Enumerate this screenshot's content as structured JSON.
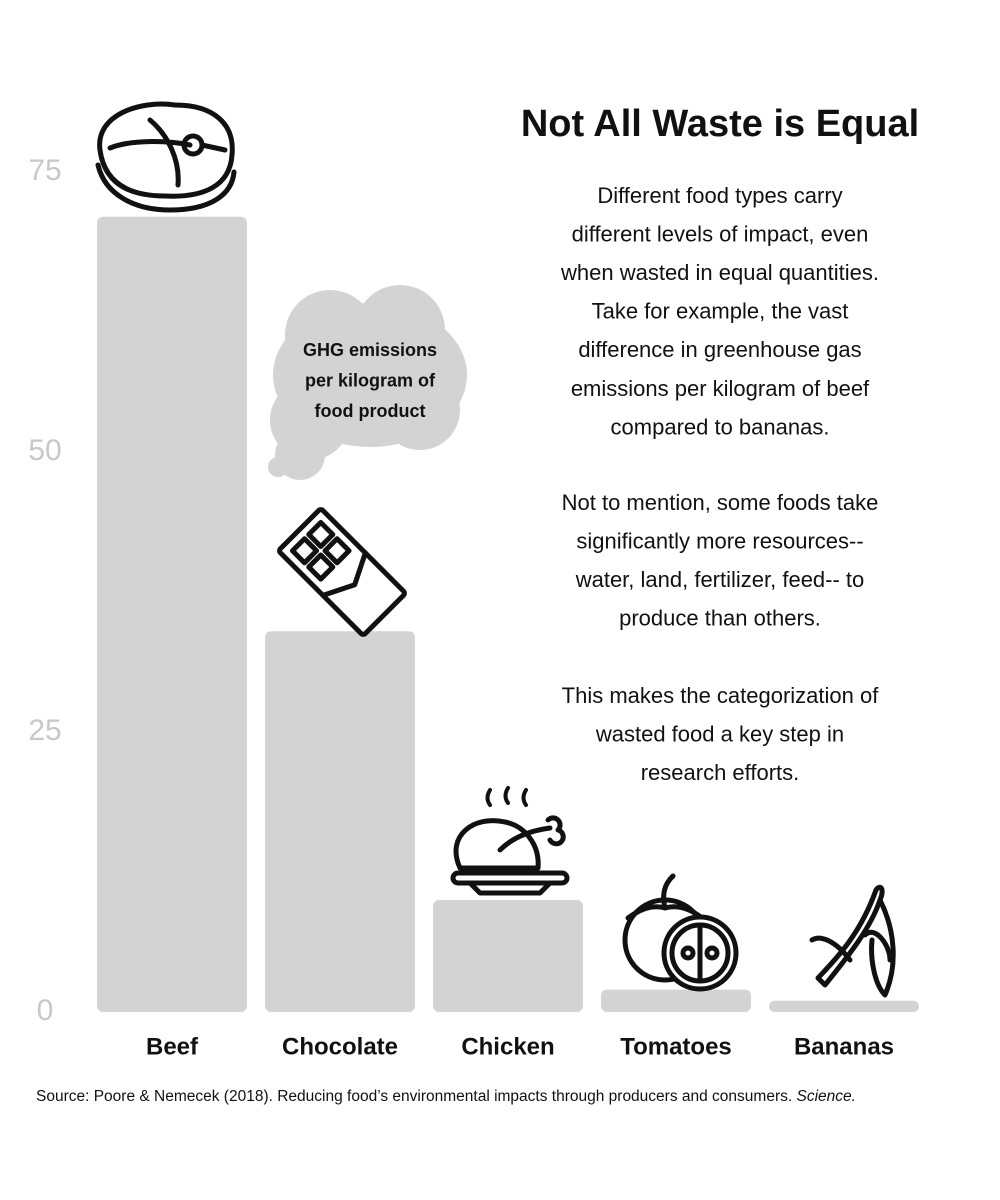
{
  "chart_data": {
    "type": "bar",
    "title": "Not All Waste is Equal",
    "categories": [
      "Beef",
      "Chocolate",
      "Chicken",
      "Tomatoes",
      "Bananas"
    ],
    "values": [
      71,
      34,
      10,
      2,
      1
    ],
    "color": "#d3d3d3",
    "ylim": [
      0,
      75
    ],
    "yticks": [
      0,
      25,
      50,
      75
    ],
    "grid": false,
    "annotation": [
      "GHG emissions",
      "per kilogram of",
      "food product"
    ],
    "paragraphs": [
      [
        "Different food types carry",
        "different levels of impact, even",
        "when wasted in equal quantities.",
        "Take for example, the vast",
        "difference in greenhouse gas",
        "emissions per kilogram of beef",
        "compared to bananas."
      ],
      [
        "Not to mention, some foods take",
        "significantly more resources--",
        "water, land, fertilizer, feed-- to",
        "produce than others."
      ],
      [
        "This makes the categorization of",
        "wasted food a key step in",
        "research efforts."
      ]
    ],
    "source": {
      "text": "Source: Poore & Nemecek (2018). Reducing food’s environmental impacts through producers and consumers.",
      "journal": "Science."
    }
  }
}
